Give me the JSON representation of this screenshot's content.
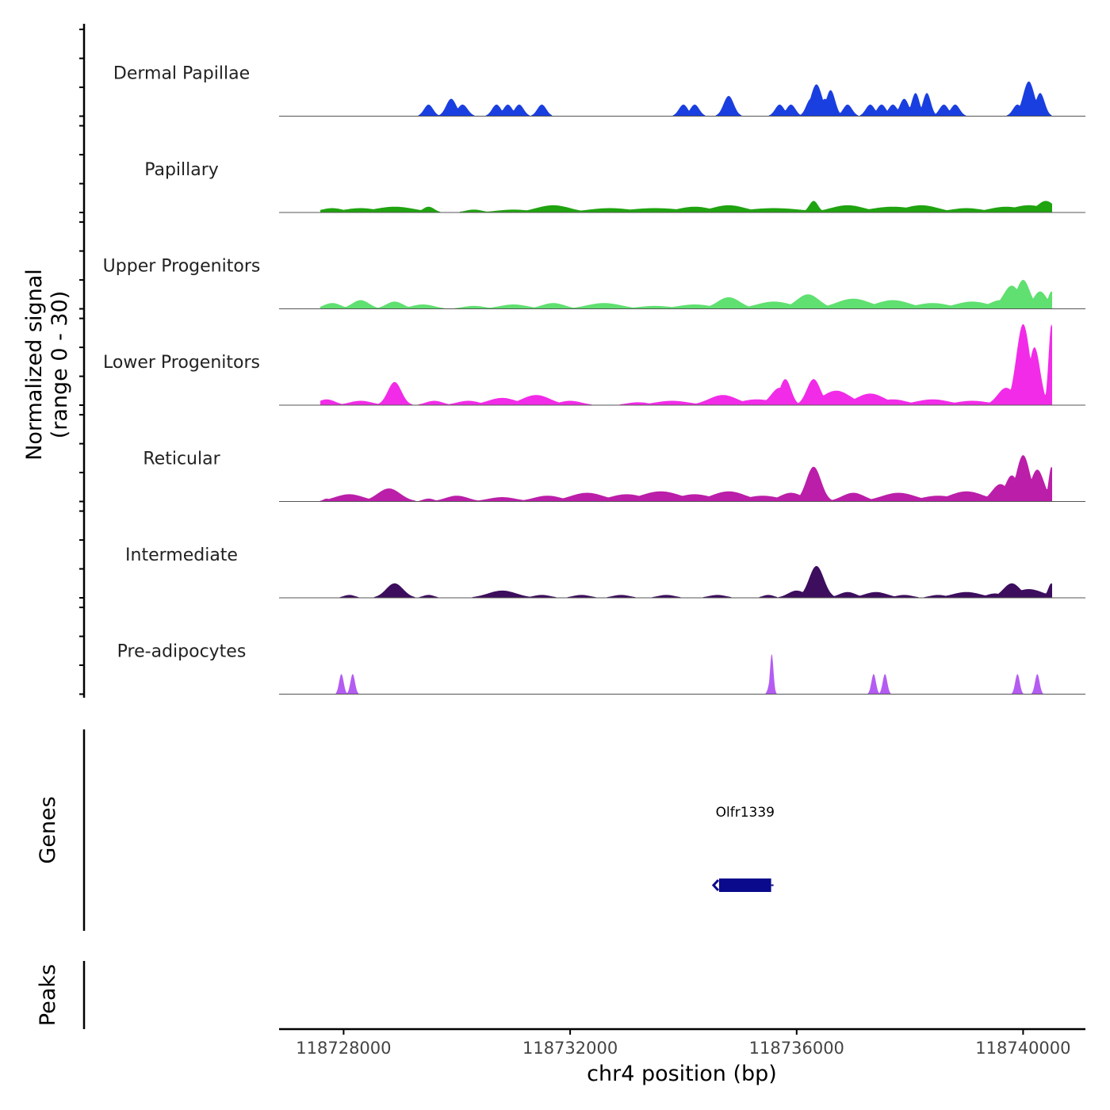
{
  "chart_data": {
    "type": "area",
    "title": "",
    "ylabel": "Normalized signal",
    "ylabel_range": "(range 0 - 30)",
    "xlabel": "chr4 position (bp)",
    "xlim": [
      118726860,
      118741100
    ],
    "ylim": [
      0,
      30
    ],
    "x_ticks": [
      118728000,
      118732000,
      118736000,
      118740000
    ],
    "x_tick_labels": [
      "118728000",
      "118732000",
      "118736000",
      "118740000"
    ],
    "tracks": [
      {
        "name": "Dermal Papillae",
        "color": "#1a3fe0",
        "peaks": [
          [
            118729500,
            4,
            80
          ],
          [
            118729900,
            6,
            90
          ],
          [
            118730100,
            4,
            90
          ],
          [
            118730700,
            4,
            80
          ],
          [
            118730900,
            4,
            80
          ],
          [
            118731100,
            4,
            80
          ],
          [
            118731500,
            4,
            80
          ],
          [
            118734000,
            4,
            80
          ],
          [
            118734200,
            4,
            80
          ],
          [
            118734800,
            7,
            90
          ],
          [
            118735700,
            4,
            80
          ],
          [
            118735900,
            4,
            80
          ],
          [
            118736250,
            6,
            80
          ],
          [
            118736350,
            11,
            100
          ],
          [
            118736500,
            6,
            80
          ],
          [
            118736600,
            9,
            80
          ],
          [
            118736900,
            4,
            80
          ],
          [
            118737300,
            4,
            80
          ],
          [
            118737500,
            4,
            80
          ],
          [
            118737700,
            4,
            80
          ],
          [
            118737900,
            6,
            80
          ],
          [
            118738100,
            8,
            70
          ],
          [
            118738300,
            8,
            70
          ],
          [
            118738600,
            4,
            80
          ],
          [
            118738800,
            4,
            80
          ],
          [
            118739900,
            4,
            80
          ],
          [
            118740100,
            12,
            100
          ],
          [
            118740300,
            8,
            80
          ]
        ]
      },
      {
        "name": "Papillary",
        "color": "#1fa30f",
        "peaks": [
          [
            118727800,
            1.5,
            200
          ],
          [
            118728300,
            1.5,
            300
          ],
          [
            118728900,
            2,
            350
          ],
          [
            118729500,
            2,
            100
          ],
          [
            118730300,
            1,
            150
          ],
          [
            118731000,
            1,
            300
          ],
          [
            118731700,
            2.5,
            300
          ],
          [
            118732700,
            1.5,
            400
          ],
          [
            118733500,
            1.5,
            500
          ],
          [
            118734200,
            2,
            300
          ],
          [
            118734800,
            2.5,
            300
          ],
          [
            118735600,
            1.5,
            500
          ],
          [
            118736300,
            4,
            80
          ],
          [
            118736900,
            2.5,
            300
          ],
          [
            118737700,
            2,
            400
          ],
          [
            118738200,
            2.5,
            300
          ],
          [
            118739000,
            1.5,
            300
          ],
          [
            118739700,
            2,
            300
          ],
          [
            118740100,
            2.5,
            300
          ],
          [
            118740400,
            4,
            150
          ]
        ]
      },
      {
        "name": "Upper Progenitors",
        "color": "#5fe070",
        "peaks": [
          [
            118727800,
            2,
            150
          ],
          [
            118728300,
            3,
            150
          ],
          [
            118728900,
            2.5,
            150
          ],
          [
            118729400,
            1.5,
            200
          ],
          [
            118730300,
            1,
            200
          ],
          [
            118731000,
            1.5,
            250
          ],
          [
            118731700,
            2,
            200
          ],
          [
            118732600,
            2,
            300
          ],
          [
            118733500,
            1,
            300
          ],
          [
            118734200,
            1.5,
            300
          ],
          [
            118734800,
            4,
            200
          ],
          [
            118735600,
            2.5,
            300
          ],
          [
            118736200,
            5,
            200
          ],
          [
            118737000,
            3.5,
            300
          ],
          [
            118737700,
            3,
            300
          ],
          [
            118738400,
            2,
            300
          ],
          [
            118739100,
            2.5,
            300
          ],
          [
            118739600,
            3,
            200
          ],
          [
            118739800,
            8,
            150
          ],
          [
            118740000,
            10,
            120
          ],
          [
            118740300,
            6,
            120
          ],
          [
            118740500,
            6,
            60
          ]
        ]
      },
      {
        "name": "Lower Progenitors",
        "color": "#f22be8",
        "peaks": [
          [
            118727700,
            2,
            150
          ],
          [
            118728300,
            1.5,
            200
          ],
          [
            118728900,
            8,
            120
          ],
          [
            118729600,
            1.5,
            150
          ],
          [
            118730200,
            1.5,
            200
          ],
          [
            118730800,
            2.5,
            250
          ],
          [
            118731400,
            3.5,
            250
          ],
          [
            118732000,
            1.5,
            200
          ],
          [
            118733200,
            1,
            200
          ],
          [
            118733800,
            1.5,
            300
          ],
          [
            118734700,
            3.5,
            250
          ],
          [
            118735300,
            2,
            300
          ],
          [
            118735700,
            6,
            150
          ],
          [
            118735800,
            9,
            100
          ],
          [
            118736300,
            9,
            120
          ],
          [
            118736700,
            5,
            250
          ],
          [
            118737300,
            4,
            250
          ],
          [
            118737700,
            2,
            250
          ],
          [
            118738400,
            2,
            300
          ],
          [
            118739100,
            1.5,
            300
          ],
          [
            118739700,
            6,
            150
          ],
          [
            118740000,
            28,
            120
          ],
          [
            118740200,
            20,
            100
          ],
          [
            118740500,
            28,
            50
          ]
        ]
      },
      {
        "name": "Reticular",
        "color": "#bb1ea8",
        "peaks": [
          [
            118727700,
            1,
            60
          ],
          [
            118728100,
            2.5,
            250
          ],
          [
            118728800,
            4.5,
            200
          ],
          [
            118729500,
            1,
            100
          ],
          [
            118730000,
            2,
            200
          ],
          [
            118730800,
            1.5,
            250
          ],
          [
            118731600,
            2,
            250
          ],
          [
            118732300,
            3,
            300
          ],
          [
            118733000,
            2.5,
            300
          ],
          [
            118733600,
            3.5,
            350
          ],
          [
            118734200,
            2.5,
            300
          ],
          [
            118734800,
            3.5,
            300
          ],
          [
            118735400,
            2,
            300
          ],
          [
            118735900,
            3,
            200
          ],
          [
            118736300,
            12,
            130
          ],
          [
            118737000,
            3,
            200
          ],
          [
            118737800,
            3,
            300
          ],
          [
            118738500,
            2,
            300
          ],
          [
            118739000,
            3.5,
            300
          ],
          [
            118739600,
            6,
            150
          ],
          [
            118739800,
            9,
            120
          ],
          [
            118740000,
            16,
            120
          ],
          [
            118740250,
            11,
            120
          ],
          [
            118740500,
            12,
            50
          ]
        ]
      },
      {
        "name": "Intermediate",
        "color": "#3d0d5e",
        "peaks": [
          [
            118728100,
            1,
            100
          ],
          [
            118728900,
            5,
            150
          ],
          [
            118729500,
            1,
            100
          ],
          [
            118730800,
            2.5,
            250
          ],
          [
            118731500,
            1,
            150
          ],
          [
            118732200,
            1,
            150
          ],
          [
            118732900,
            1,
            150
          ],
          [
            118733700,
            1,
            150
          ],
          [
            118734600,
            1,
            150
          ],
          [
            118735500,
            1,
            100
          ],
          [
            118736000,
            2.5,
            150
          ],
          [
            118736350,
            11,
            130
          ],
          [
            118736900,
            2,
            150
          ],
          [
            118737400,
            2,
            200
          ],
          [
            118737900,
            1,
            150
          ],
          [
            118738500,
            1,
            150
          ],
          [
            118739000,
            2,
            250
          ],
          [
            118739500,
            1.5,
            150
          ],
          [
            118739800,
            5,
            150
          ],
          [
            118740100,
            3,
            250
          ],
          [
            118740500,
            5,
            60
          ]
        ]
      },
      {
        "name": "Pre-adipocytes",
        "color": "#b45cf2",
        "peaks": [
          [
            118727960,
            7,
            40
          ],
          [
            118728160,
            7,
            40
          ],
          [
            118735550,
            6,
            40
          ],
          [
            118735560,
            14,
            30
          ],
          [
            118737360,
            7,
            40
          ],
          [
            118737560,
            7,
            40
          ],
          [
            118739900,
            7,
            40
          ],
          [
            118740250,
            7,
            40
          ]
        ]
      }
    ],
    "genes": [
      {
        "name": "Olfr1339",
        "start": 118734630,
        "end": 118735550,
        "strand": "-",
        "color": "#0a0a8c"
      }
    ],
    "panels": [
      "Genes",
      "Peaks"
    ]
  }
}
